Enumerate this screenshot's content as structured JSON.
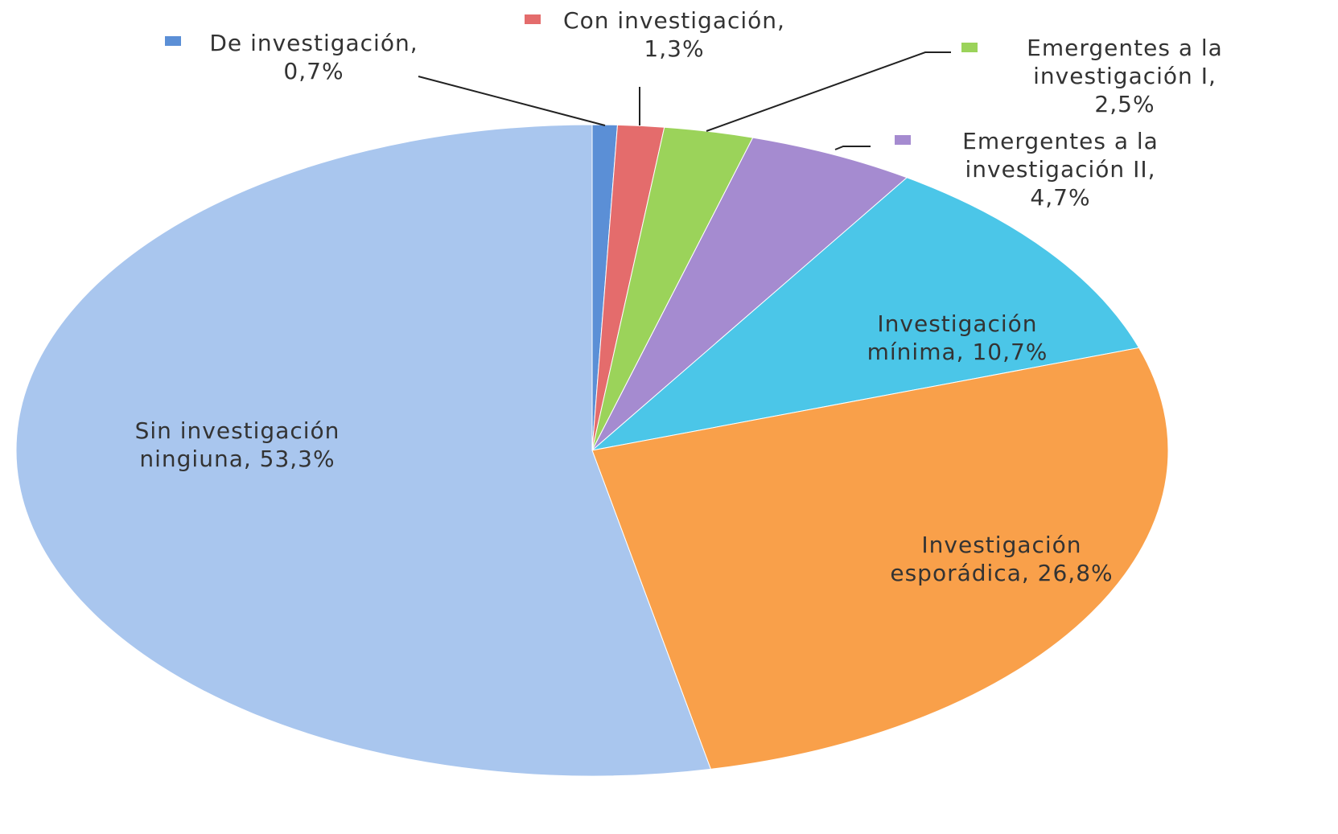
{
  "chart_data": {
    "type": "pie",
    "categories": [
      "De investigación,",
      "Con investigación,",
      "Emergentes a la investigación I,",
      "Emergentes a la investigación II,",
      "Investigación mínima,",
      "Investigación esporádica,",
      "Sin investigación ningiuna,"
    ],
    "values": [
      0.7,
      1.3,
      2.5,
      4.7,
      10.7,
      26.8,
      53.3
    ],
    "value_labels": [
      "0,7%",
      "1,3%",
      "2,5%",
      "4,7%",
      "10,7%",
      "26,8%",
      "53,3%"
    ],
    "colors": [
      "#5b8fd6",
      "#e46c6c",
      "#9bd35a",
      "#a58bd0",
      "#4bc6e8",
      "#f9a04a",
      "#a9c6ee"
    ]
  }
}
